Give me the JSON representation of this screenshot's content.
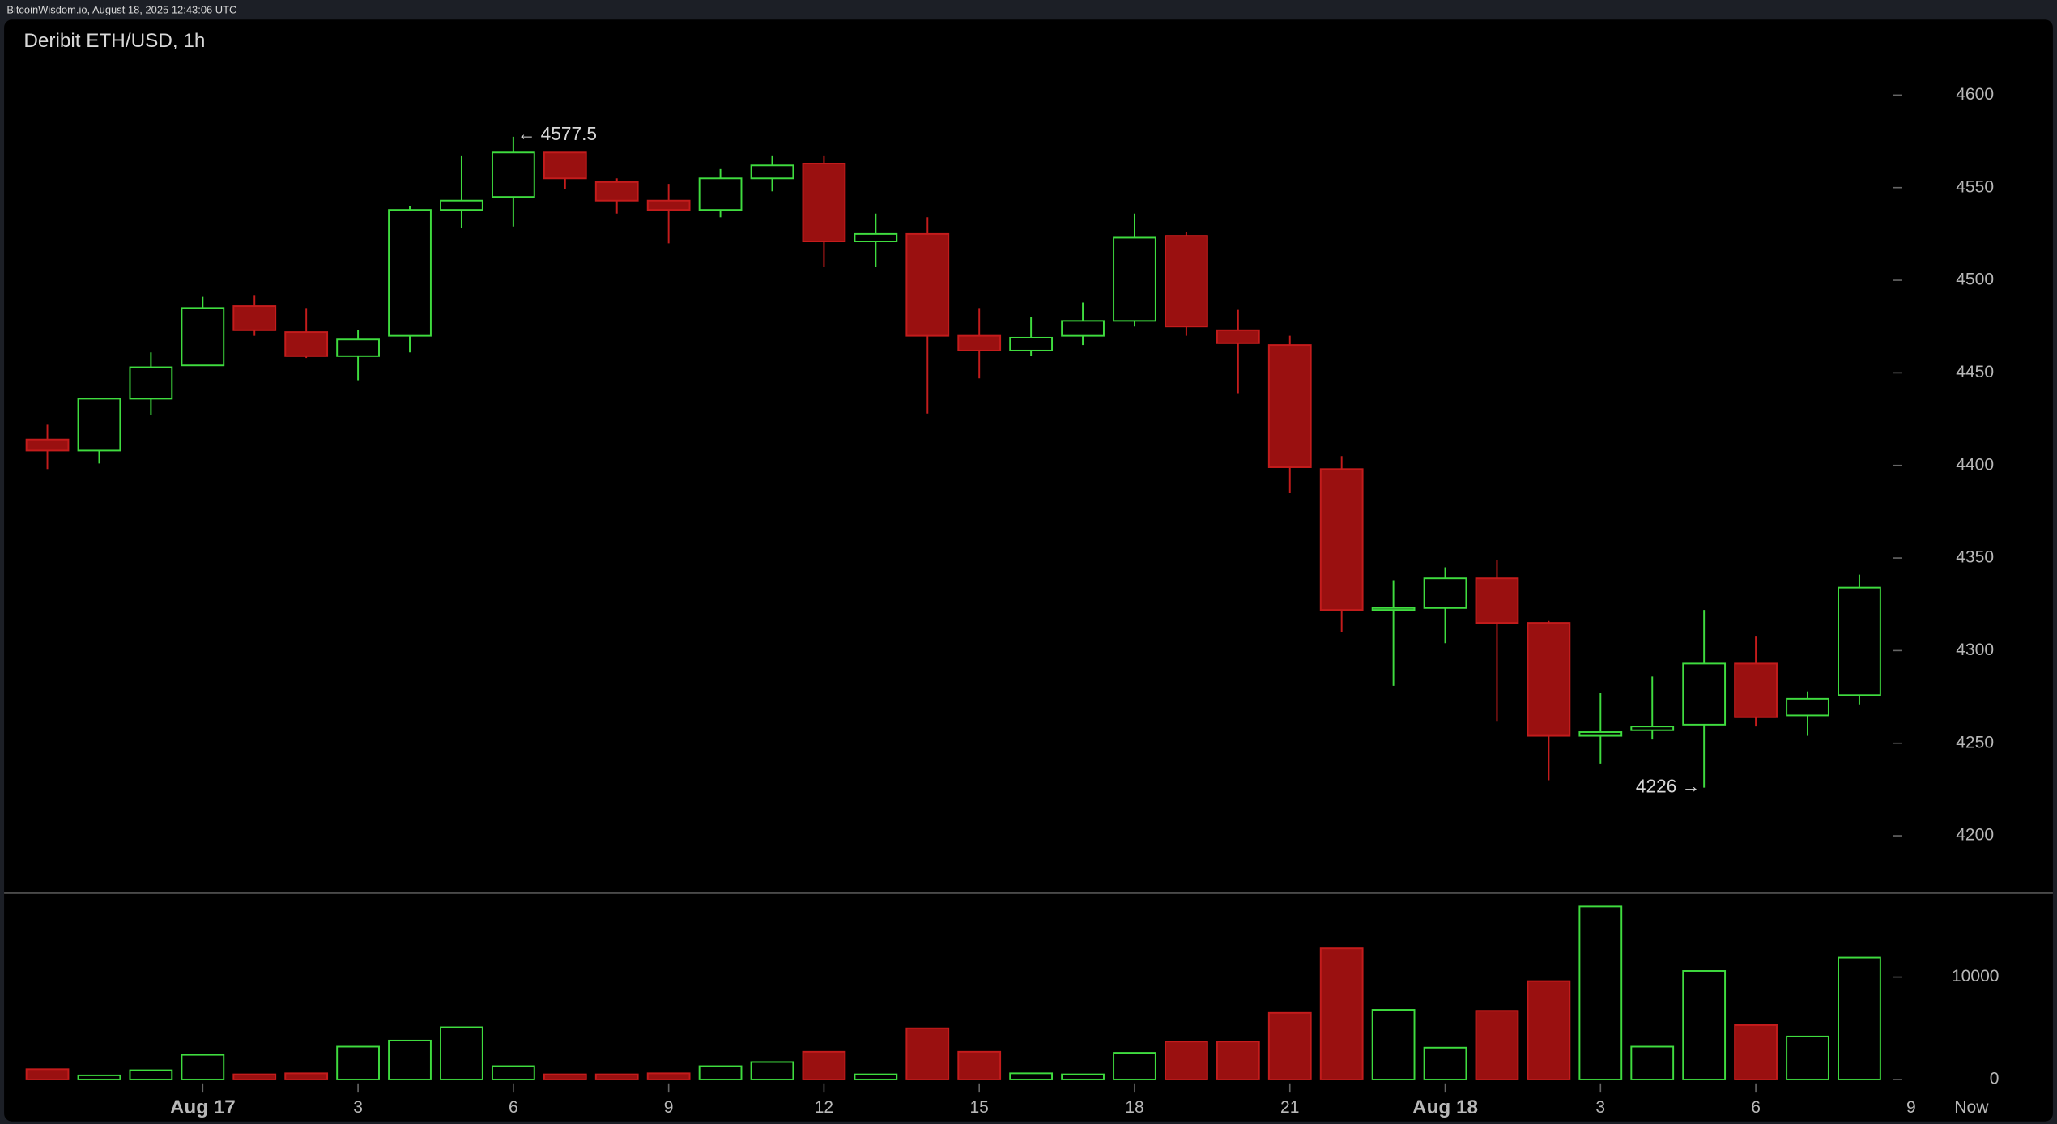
{
  "header": {
    "caption": "BitcoinWisdom.io, August 18, 2025 12:43:06 UTC"
  },
  "chart_data": {
    "type": "candlestick",
    "title": "Deribit ETH/USD, 1h",
    "categories": [
      null,
      null,
      null,
      "Aug 17",
      null,
      null,
      "3",
      null,
      null,
      "6",
      null,
      null,
      "9",
      null,
      null,
      "12",
      null,
      null,
      "15",
      null,
      null,
      "18",
      null,
      null,
      "21",
      null,
      null,
      "Aug 18",
      null,
      null,
      "3",
      null,
      null,
      "6",
      null,
      null
    ],
    "x_axis_end_labels": [
      "9",
      "Now"
    ],
    "open": [
      4414,
      4408,
      4436,
      4454,
      4486,
      4472,
      4459,
      4470,
      4538,
      4545,
      4569,
      4553,
      4543,
      4538,
      4555,
      4563,
      4521,
      4525,
      4470,
      4462,
      4470,
      4478,
      4524,
      4473,
      4465,
      4398,
      4322,
      4323,
      4339,
      4315,
      4254,
      4257,
      4260,
      4293,
      4265,
      4276
    ],
    "high": [
      4422,
      4436,
      4461,
      4491,
      4492,
      4485,
      4473,
      4540,
      4567,
      4577.5,
      4569,
      4555,
      4552,
      4560,
      4567,
      4567,
      4536,
      4534,
      4485,
      4480,
      4488,
      4536,
      4526,
      4484,
      4470,
      4405,
      4338,
      4345,
      4349,
      4316,
      4277,
      4286,
      4322,
      4308,
      4278,
      4341
    ],
    "low": [
      4398,
      4401,
      4427,
      4454,
      4470,
      4458,
      4446,
      4461,
      4528,
      4529,
      4549,
      4536,
      4520,
      4534,
      4548,
      4507,
      4507,
      4428,
      4447,
      4459,
      4465,
      4475,
      4470,
      4439,
      4385,
      4310,
      4281,
      4304,
      4262,
      4230,
      4239,
      4252,
      4226,
      4259,
      4254,
      4271
    ],
    "close": [
      4408,
      4436,
      4453,
      4485,
      4473,
      4459,
      4468,
      4538,
      4543,
      4569,
      4555,
      4543,
      4538,
      4555,
      4562,
      4521,
      4525,
      4470,
      4462,
      4469,
      4478,
      4523,
      4475,
      4466,
      4399,
      4322,
      4323,
      4339,
      4315,
      4254,
      4256,
      4259,
      4293,
      4264,
      4274,
      4334
    ],
    "volume": [
      1000,
      400,
      900,
      2400,
      500,
      600,
      3200,
      3800,
      5100,
      1300,
      500,
      500,
      600,
      1300,
      1700,
      2700,
      500,
      5000,
      2700,
      600,
      500,
      2600,
      3700,
      3700,
      6500,
      12800,
      6800,
      3100,
      6700,
      9600,
      16900,
      3200,
      10600,
      5300,
      4200,
      11900
    ],
    "annotations": [
      "← 4577.5",
      "4226 →"
    ],
    "ylim": [
      4169,
      4623
    ],
    "yticks": [
      4200,
      4250,
      4300,
      4350,
      4400,
      4450,
      4500,
      4550,
      4600
    ],
    "volume_ylim": [
      -4100,
      18200
    ],
    "volume_yticks": [
      0,
      10000
    ],
    "up_color": "#3fdc3f",
    "down_color": "#9a1010",
    "down_edge_color": "#c41c1c"
  }
}
